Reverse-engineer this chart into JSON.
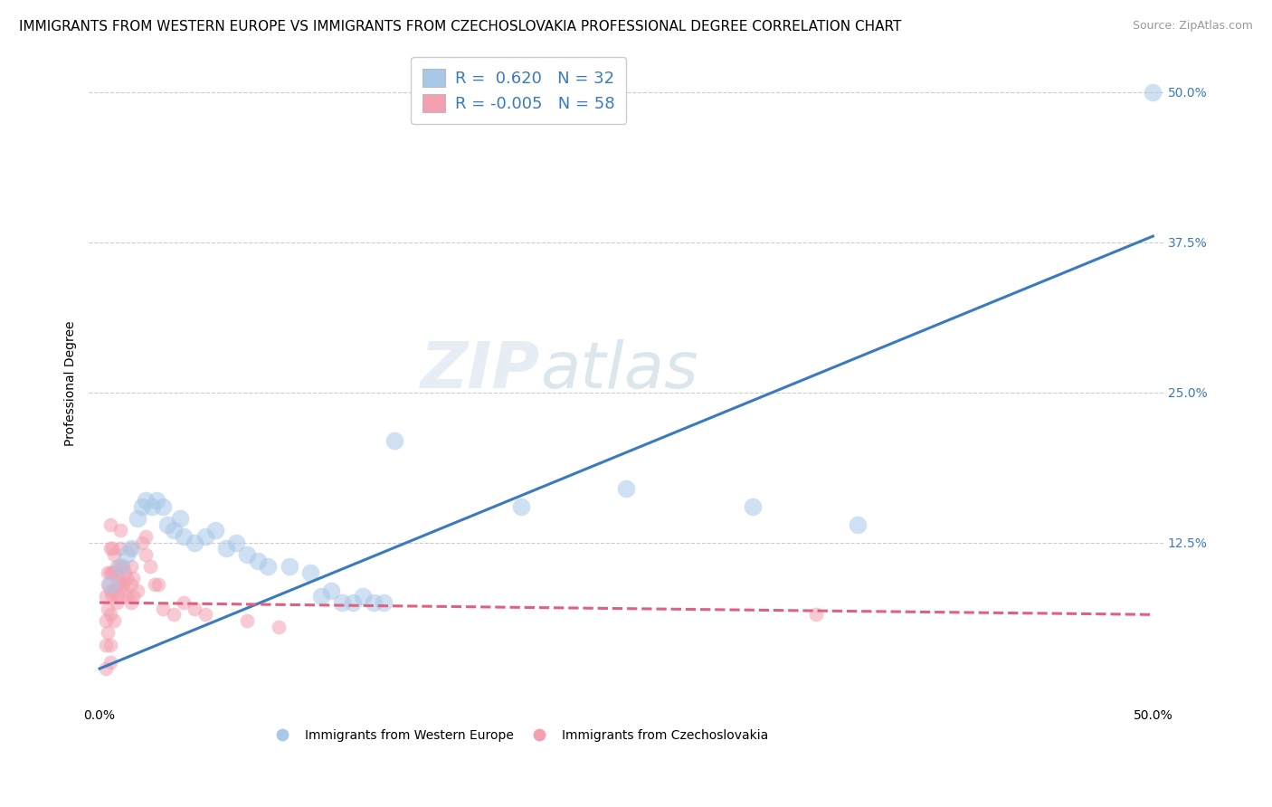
{
  "title": "IMMIGRANTS FROM WESTERN EUROPE VS IMMIGRANTS FROM CZECHOSLOVAKIA PROFESSIONAL DEGREE CORRELATION CHART",
  "source": "Source: ZipAtlas.com",
  "ylabel": "Professional Degree",
  "xlim": [
    0.0,
    0.5
  ],
  "ylim": [
    0.0,
    0.5
  ],
  "ytick_labels": [
    "12.5%",
    "25.0%",
    "37.5%",
    "50.0%"
  ],
  "ytick_values": [
    0.125,
    0.25,
    0.375,
    0.5
  ],
  "xtick_labels": [
    "0.0%",
    "50.0%"
  ],
  "xtick_values": [
    0.0,
    0.5
  ],
  "watermark_zip": "ZIP",
  "watermark_atlas": "atlas",
  "color_blue": "#a8c8e8",
  "color_pink": "#f4a0b0",
  "line_color_blue": "#3a7abf",
  "line_color_pink": "#e06080",
  "blue_scatter": [
    [
      0.005,
      0.09
    ],
    [
      0.01,
      0.105
    ],
    [
      0.013,
      0.115
    ],
    [
      0.015,
      0.12
    ],
    [
      0.018,
      0.145
    ],
    [
      0.02,
      0.155
    ],
    [
      0.022,
      0.16
    ],
    [
      0.025,
      0.155
    ],
    [
      0.027,
      0.16
    ],
    [
      0.03,
      0.155
    ],
    [
      0.032,
      0.14
    ],
    [
      0.035,
      0.135
    ],
    [
      0.038,
      0.145
    ],
    [
      0.04,
      0.13
    ],
    [
      0.045,
      0.125
    ],
    [
      0.05,
      0.13
    ],
    [
      0.055,
      0.135
    ],
    [
      0.06,
      0.12
    ],
    [
      0.065,
      0.125
    ],
    [
      0.07,
      0.115
    ],
    [
      0.075,
      0.11
    ],
    [
      0.08,
      0.105
    ],
    [
      0.09,
      0.105
    ],
    [
      0.1,
      0.1
    ],
    [
      0.105,
      0.08
    ],
    [
      0.11,
      0.085
    ],
    [
      0.115,
      0.075
    ],
    [
      0.12,
      0.075
    ],
    [
      0.125,
      0.08
    ],
    [
      0.13,
      0.075
    ],
    [
      0.135,
      0.075
    ],
    [
      0.14,
      0.21
    ],
    [
      0.2,
      0.155
    ],
    [
      0.25,
      0.17
    ],
    [
      0.31,
      0.155
    ],
    [
      0.36,
      0.14
    ],
    [
      0.5,
      0.5
    ]
  ],
  "pink_scatter": [
    [
      0.003,
      0.02
    ],
    [
      0.003,
      0.04
    ],
    [
      0.003,
      0.06
    ],
    [
      0.003,
      0.08
    ],
    [
      0.004,
      0.05
    ],
    [
      0.004,
      0.07
    ],
    [
      0.004,
      0.09
    ],
    [
      0.004,
      0.1
    ],
    [
      0.005,
      0.04
    ],
    [
      0.005,
      0.065
    ],
    [
      0.005,
      0.085
    ],
    [
      0.005,
      0.1
    ],
    [
      0.005,
      0.12
    ],
    [
      0.005,
      0.14
    ],
    [
      0.006,
      0.08
    ],
    [
      0.006,
      0.1
    ],
    [
      0.006,
      0.12
    ],
    [
      0.007,
      0.06
    ],
    [
      0.007,
      0.085
    ],
    [
      0.007,
      0.1
    ],
    [
      0.007,
      0.115
    ],
    [
      0.008,
      0.075
    ],
    [
      0.008,
      0.09
    ],
    [
      0.008,
      0.105
    ],
    [
      0.009,
      0.08
    ],
    [
      0.009,
      0.095
    ],
    [
      0.01,
      0.09
    ],
    [
      0.01,
      0.105
    ],
    [
      0.01,
      0.12
    ],
    [
      0.01,
      0.135
    ],
    [
      0.011,
      0.09
    ],
    [
      0.011,
      0.105
    ],
    [
      0.012,
      0.085
    ],
    [
      0.012,
      0.1
    ],
    [
      0.013,
      0.08
    ],
    [
      0.013,
      0.095
    ],
    [
      0.015,
      0.075
    ],
    [
      0.015,
      0.09
    ],
    [
      0.015,
      0.105
    ],
    [
      0.015,
      0.12
    ],
    [
      0.016,
      0.08
    ],
    [
      0.016,
      0.095
    ],
    [
      0.018,
      0.085
    ],
    [
      0.02,
      0.125
    ],
    [
      0.022,
      0.13
    ],
    [
      0.022,
      0.115
    ],
    [
      0.024,
      0.105
    ],
    [
      0.026,
      0.09
    ],
    [
      0.028,
      0.09
    ],
    [
      0.03,
      0.07
    ],
    [
      0.035,
      0.065
    ],
    [
      0.04,
      0.075
    ],
    [
      0.045,
      0.07
    ],
    [
      0.05,
      0.065
    ],
    [
      0.07,
      0.06
    ],
    [
      0.085,
      0.055
    ],
    [
      0.34,
      0.065
    ],
    [
      0.005,
      0.025
    ]
  ],
  "blue_line_x": [
    0.0,
    0.5
  ],
  "blue_line_y": [
    0.02,
    0.38
  ],
  "pink_line_x": [
    0.0,
    0.5
  ],
  "pink_line_y": [
    0.075,
    0.065
  ],
  "scatter_size_blue": 200,
  "scatter_size_pink": 130,
  "scatter_alpha": 0.55,
  "grid_color": "#cccccc",
  "background_color": "#ffffff",
  "title_fontsize": 11,
  "source_fontsize": 9,
  "axis_label_fontsize": 10,
  "tick_fontsize": 10,
  "legend_fontsize": 13,
  "watermark_fontsize_zip": 52,
  "watermark_fontsize_atlas": 52,
  "watermark_color_zip": "#c8d8e8",
  "watermark_color_atlas": "#b0c8d8",
  "watermark_alpha": 0.45,
  "legend_label_color": "#3a7abf"
}
